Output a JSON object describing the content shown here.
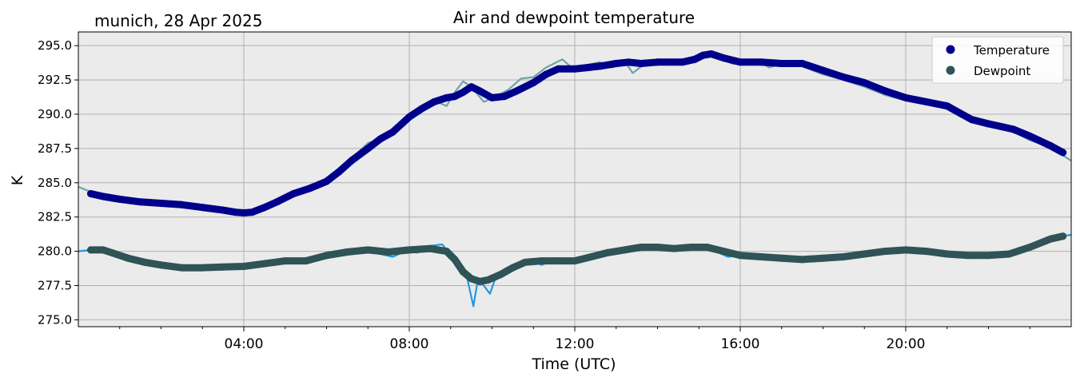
{
  "chart_data": {
    "type": "line",
    "title": "Air and dewpoint temperature",
    "subtitle": "munich, 28 Apr 2025",
    "xlabel": "Time (UTC)",
    "ylabel": "K",
    "x_unit": "hours",
    "xlim": [
      0,
      24
    ],
    "ylim": [
      274.5,
      296.0
    ],
    "grid": true,
    "legend_position": "top-right",
    "x_ticks": [
      {
        "x": 4,
        "label": "04:00"
      },
      {
        "x": 8,
        "label": "08:00"
      },
      {
        "x": 12,
        "label": "12:00"
      },
      {
        "x": 16,
        "label": "16:00"
      },
      {
        "x": 20,
        "label": "20:00"
      }
    ],
    "y_ticks": [
      {
        "y": 275.0,
        "label": "275.0"
      },
      {
        "y": 277.5,
        "label": "277.5"
      },
      {
        "y": 280.0,
        "label": "280.0"
      },
      {
        "y": 282.5,
        "label": "282.5"
      },
      {
        "y": 285.0,
        "label": "285.0"
      },
      {
        "y": 287.5,
        "label": "287.5"
      },
      {
        "y": 290.0,
        "label": "290.0"
      },
      {
        "y": 292.5,
        "label": "292.5"
      },
      {
        "y": 295.0,
        "label": "295.0"
      }
    ],
    "series": [
      {
        "name": "Temperature",
        "style": "raw-line",
        "color": "#6fa3a8",
        "x": [
          0.0,
          0.25,
          0.5,
          1.0,
          1.5,
          2.0,
          2.5,
          3.0,
          3.5,
          4.0,
          4.5,
          5.0,
          5.5,
          6.0,
          6.5,
          7.0,
          7.3,
          7.6,
          8.0,
          8.3,
          8.6,
          8.9,
          9.1,
          9.3,
          9.5,
          9.8,
          10.1,
          10.4,
          10.7,
          11.0,
          11.3,
          11.7,
          12.0,
          12.3,
          12.6,
          12.9,
          13.2,
          13.4,
          13.7,
          14.0,
          14.3,
          14.6,
          14.9,
          15.2,
          15.5,
          15.8,
          16.1,
          16.4,
          16.7,
          17.0,
          17.5,
          18.0,
          18.5,
          19.0,
          19.5,
          20.0,
          20.5,
          21.0,
          21.5,
          22.0,
          22.5,
          23.0,
          23.5,
          24.0
        ],
        "values": [
          284.7,
          284.4,
          284.2,
          283.9,
          283.7,
          283.5,
          283.5,
          283.3,
          283.0,
          282.8,
          283.2,
          283.9,
          284.4,
          285.2,
          286.5,
          287.9,
          288.2,
          288.9,
          289.9,
          290.4,
          291.0,
          290.6,
          291.6,
          292.4,
          292.0,
          290.9,
          291.3,
          291.8,
          292.6,
          292.7,
          293.4,
          294.0,
          293.2,
          293.6,
          293.8,
          293.4,
          293.9,
          293.0,
          293.7,
          293.8,
          294.0,
          293.6,
          294.1,
          294.5,
          294.1,
          293.7,
          293.6,
          294.0,
          293.4,
          293.7,
          293.5,
          292.9,
          292.5,
          292.0,
          291.4,
          291.0,
          290.9,
          290.7,
          289.6,
          289.2,
          288.9,
          288.1,
          287.6,
          286.6
        ]
      },
      {
        "name": "Dewpoint",
        "style": "raw-line",
        "color": "#1f9ae0",
        "x": [
          0.0,
          0.3,
          0.6,
          1.0,
          1.5,
          2.0,
          2.5,
          3.0,
          3.5,
          4.0,
          4.5,
          5.0,
          5.5,
          6.0,
          6.5,
          7.0,
          7.3,
          7.6,
          7.9,
          8.2,
          8.5,
          8.8,
          9.0,
          9.2,
          9.4,
          9.55,
          9.65,
          9.8,
          9.95,
          10.1,
          10.3,
          10.6,
          10.9,
          11.2,
          11.5,
          11.8,
          12.1,
          12.4,
          12.7,
          13.0,
          13.3,
          13.6,
          13.9,
          14.2,
          14.5,
          14.8,
          15.1,
          15.4,
          15.7,
          16.0,
          16.3,
          16.6,
          17.0,
          17.5,
          18.0,
          18.5,
          19.0,
          19.5,
          20.0,
          20.5,
          21.0,
          21.5,
          22.0,
          22.5,
          23.0,
          23.5,
          24.0
        ],
        "values": [
          280.0,
          280.1,
          280.2,
          279.7,
          279.2,
          278.9,
          278.8,
          278.8,
          278.9,
          278.9,
          279.1,
          279.3,
          279.4,
          279.8,
          280.1,
          280.0,
          279.8,
          279.6,
          280.0,
          279.9,
          280.4,
          280.5,
          279.7,
          279.3,
          278.0,
          276.0,
          277.8,
          277.5,
          276.9,
          278.2,
          278.7,
          279.1,
          279.4,
          279.0,
          279.4,
          279.2,
          279.5,
          279.4,
          279.8,
          280.0,
          280.2,
          280.5,
          280.3,
          280.2,
          280.1,
          280.4,
          280.3,
          280.0,
          279.6,
          279.7,
          279.5,
          279.6,
          279.4,
          279.5,
          279.4,
          279.6,
          279.8,
          280.0,
          280.0,
          279.9,
          279.8,
          279.8,
          279.7,
          279.8,
          280.3,
          281.0,
          281.2
        ]
      },
      {
        "name": "Temperature",
        "style": "smoothed-markers",
        "color": "#00008b",
        "x": [
          0.3,
          0.6,
          1.0,
          1.5,
          2.0,
          2.5,
          3.0,
          3.5,
          3.8,
          4.0,
          4.2,
          4.5,
          4.8,
          5.2,
          5.6,
          6.0,
          6.3,
          6.6,
          7.0,
          7.3,
          7.6,
          8.0,
          8.3,
          8.6,
          8.9,
          9.1,
          9.3,
          9.5,
          9.7,
          10.0,
          10.3,
          10.6,
          11.0,
          11.3,
          11.6,
          12.0,
          12.3,
          12.6,
          13.0,
          13.3,
          13.6,
          14.0,
          14.3,
          14.6,
          14.9,
          15.1,
          15.3,
          15.6,
          16.0,
          16.5,
          17.0,
          17.5,
          18.0,
          18.5,
          19.0,
          19.5,
          20.0,
          20.5,
          21.0,
          21.3,
          21.6,
          22.0,
          22.3,
          22.6,
          23.0,
          23.5,
          23.8
        ],
        "values": [
          284.2,
          284.0,
          283.8,
          283.6,
          283.5,
          283.4,
          283.2,
          283.0,
          282.85,
          282.8,
          282.85,
          283.2,
          283.6,
          284.2,
          284.6,
          285.1,
          285.8,
          286.6,
          287.5,
          288.2,
          288.7,
          289.8,
          290.4,
          290.9,
          291.2,
          291.3,
          291.6,
          292.0,
          291.7,
          291.2,
          291.3,
          291.7,
          292.3,
          292.9,
          293.3,
          293.3,
          293.4,
          293.5,
          293.7,
          293.8,
          293.7,
          293.8,
          293.8,
          293.8,
          294.0,
          294.3,
          294.4,
          294.1,
          293.8,
          293.8,
          293.7,
          293.7,
          293.2,
          292.7,
          292.3,
          291.7,
          291.2,
          290.9,
          290.6,
          290.1,
          289.6,
          289.3,
          289.1,
          288.9,
          288.4,
          287.7,
          287.2
        ]
      },
      {
        "name": "Dewpoint",
        "style": "smoothed-markers",
        "color": "#2f5356",
        "x": [
          0.3,
          0.6,
          0.9,
          1.2,
          1.6,
          2.0,
          2.5,
          3.0,
          3.5,
          4.0,
          4.5,
          5.0,
          5.5,
          6.0,
          6.5,
          7.0,
          7.5,
          8.0,
          8.5,
          8.9,
          9.1,
          9.3,
          9.5,
          9.7,
          9.9,
          10.2,
          10.5,
          10.8,
          11.2,
          11.6,
          12.0,
          12.4,
          12.8,
          13.2,
          13.6,
          14.0,
          14.4,
          14.8,
          15.2,
          15.6,
          16.0,
          16.5,
          17.0,
          17.5,
          18.0,
          18.5,
          19.0,
          19.5,
          20.0,
          20.5,
          21.0,
          21.5,
          22.0,
          22.5,
          23.0,
          23.5,
          23.8
        ],
        "values": [
          280.1,
          280.1,
          279.8,
          279.5,
          279.2,
          279.0,
          278.8,
          278.8,
          278.85,
          278.9,
          279.1,
          279.3,
          279.3,
          279.7,
          279.95,
          280.1,
          279.95,
          280.1,
          280.2,
          280.0,
          279.4,
          278.5,
          278.0,
          277.8,
          277.9,
          278.3,
          278.8,
          279.2,
          279.3,
          279.3,
          279.3,
          279.6,
          279.9,
          280.1,
          280.3,
          280.3,
          280.2,
          280.3,
          280.3,
          280.0,
          279.7,
          279.6,
          279.5,
          279.4,
          279.5,
          279.6,
          279.8,
          280.0,
          280.1,
          280.0,
          279.8,
          279.7,
          279.7,
          279.8,
          280.3,
          280.9,
          281.1
        ]
      }
    ],
    "legend": [
      {
        "label": "Temperature",
        "color": "#00008b"
      },
      {
        "label": "Dewpoint",
        "color": "#2f5356"
      }
    ]
  }
}
